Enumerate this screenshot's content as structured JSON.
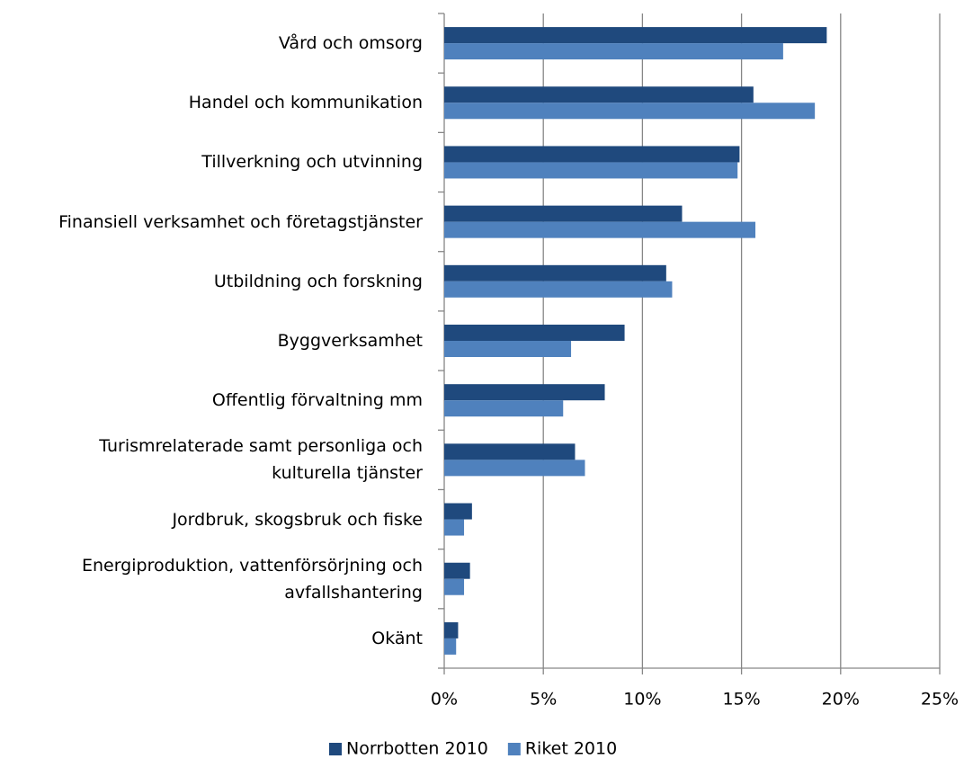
{
  "chart_data": {
    "type": "bar",
    "orientation": "horizontal",
    "categories": [
      "Vård och omsorg",
      "Handel och kommunikation",
      "Tillverkning och utvinning",
      "Finansiell verksamhet och företagstjänster",
      "Utbildning och forskning",
      "Byggverksamhet",
      "Offentlig förvaltning mm",
      "Turismrelaterade samt personliga och\nkulturella tjänster",
      "Jordbruk, skogsbruk och fiske",
      "Energiproduktion, vattenförsörjning och\navfallshantering",
      "Okänt"
    ],
    "series": [
      {
        "name": "Norrbotten 2010",
        "color": "#1f497d",
        "values": [
          19.3,
          15.6,
          14.9,
          12.0,
          11.2,
          9.1,
          8.1,
          6.6,
          1.4,
          1.3,
          0.7
        ]
      },
      {
        "name": "Riket 2010",
        "color": "#4f81bd",
        "values": [
          17.1,
          18.7,
          14.8,
          15.7,
          11.5,
          6.4,
          6.0,
          7.1,
          1.0,
          1.0,
          0.6
        ]
      }
    ],
    "xlim": [
      0,
      25
    ],
    "xticks": [
      {
        "value": 0,
        "label": "0%"
      },
      {
        "value": 5,
        "label": "5%"
      },
      {
        "value": 10,
        "label": "10%"
      },
      {
        "value": 15,
        "label": "15%"
      },
      {
        "value": 20,
        "label": "20%"
      },
      {
        "value": 25,
        "label": "25%"
      }
    ],
    "grid": true,
    "legend": "bottom"
  }
}
